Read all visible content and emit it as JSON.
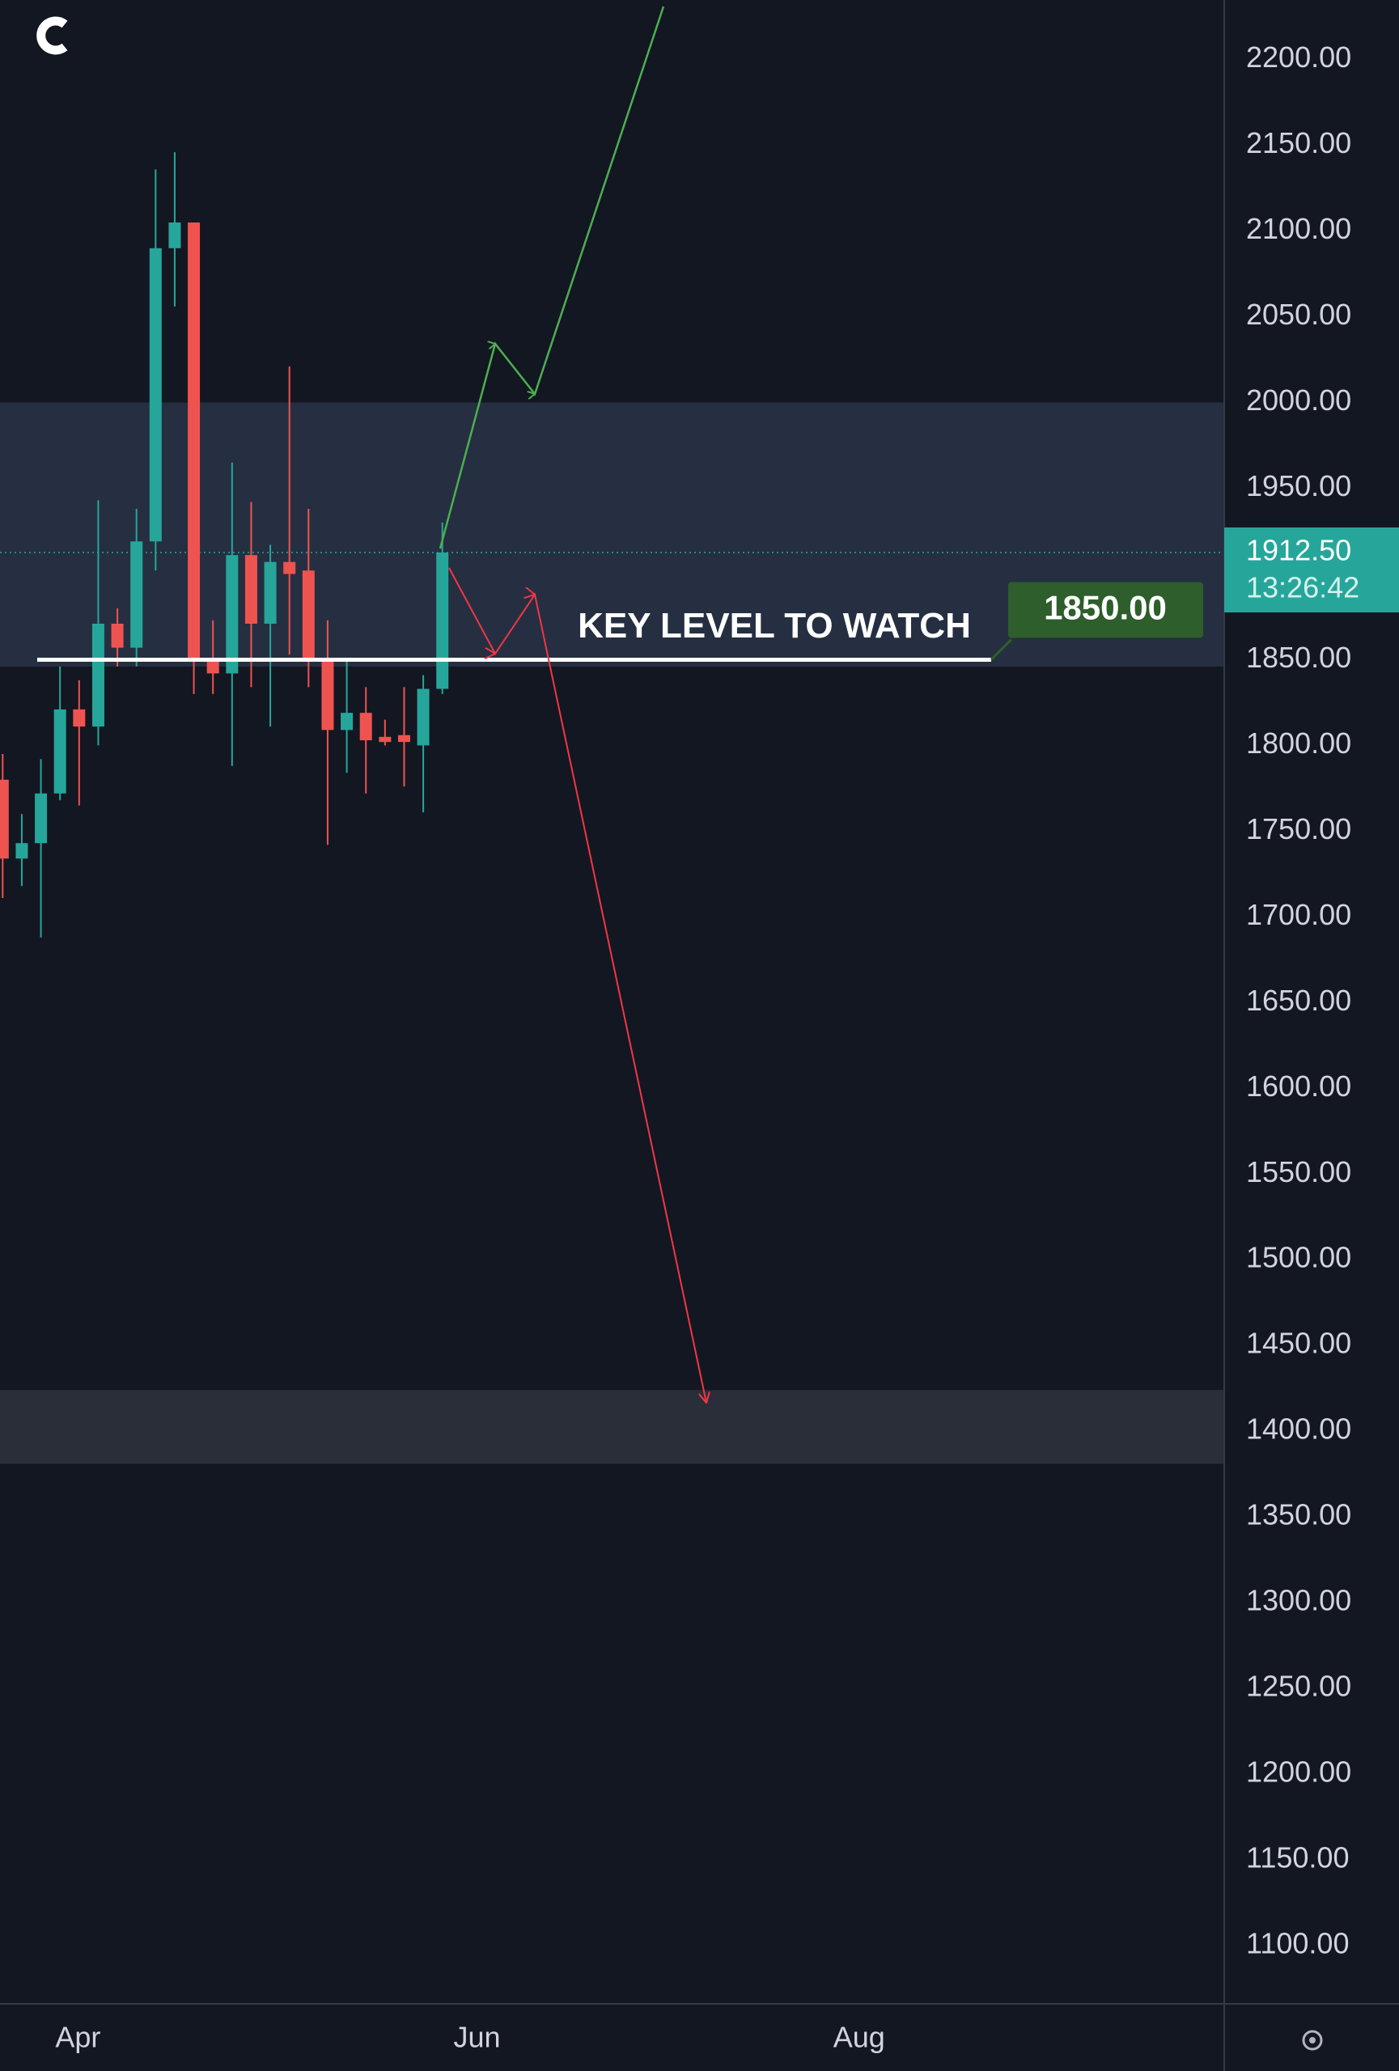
{
  "chart_data": {
    "type": "candlestick",
    "x": [
      0,
      1,
      2,
      3,
      4,
      5,
      6,
      7,
      8,
      9,
      10,
      11,
      12,
      13,
      14,
      15,
      16,
      17,
      18,
      19,
      20,
      21,
      22,
      23
    ],
    "open": [
      1780,
      1734,
      1743,
      1772,
      1821,
      1811,
      1871,
      1857,
      1919,
      2090,
      2105,
      1851,
      1842,
      1911,
      1871,
      1907,
      1902,
      1849,
      1809,
      1819,
      1805,
      1806,
      1800,
      1833
    ],
    "high": [
      1795,
      1760,
      1792,
      1846,
      1838,
      1943,
      1880,
      1938,
      2136,
      2146,
      2105,
      1873,
      1965,
      1942,
      1917,
      2021,
      1938,
      1873,
      1850,
      1834,
      1815,
      1834,
      1841,
      1930
    ],
    "low": [
      1711,
      1718,
      1688,
      1768,
      1765,
      1800,
      1846,
      1846,
      1902,
      2056,
      1830,
      1830,
      1788,
      1834,
      1811,
      1853,
      1834,
      1742,
      1784,
      1772,
      1800,
      1776,
      1761,
      1830
    ],
    "close": [
      1734,
      1743,
      1772,
      1821,
      1811,
      1871,
      1857,
      1919,
      2090,
      2105,
      1851,
      1842,
      1911,
      1871,
      1907,
      1900,
      1849,
      1809,
      1819,
      1803,
      1802,
      1802,
      1833,
      1912.5
    ],
    "up_color": "#26a69a",
    "down_color": "#ef5350",
    "xlim": [
      -0.14,
      63.9
    ],
    "xticks": [
      {
        "value": 3.94,
        "label": "Apr"
      },
      {
        "value": 24.81,
        "label": "Jun"
      },
      {
        "value": 44.8,
        "label": "Aug"
      }
    ],
    "ylim": [
      1066,
      2231
    ],
    "yticks": [
      {
        "value": 1100,
        "label": "1100.00"
      },
      {
        "value": 1150,
        "label": "1150.00"
      },
      {
        "value": 1200,
        "label": "1200.00"
      },
      {
        "value": 1250,
        "label": "1250.00"
      },
      {
        "value": 1300,
        "label": "1300.00"
      },
      {
        "value": 1350,
        "label": "1350.00"
      },
      {
        "value": 1400,
        "label": "1400.00"
      },
      {
        "value": 1450,
        "label": "1450.00"
      },
      {
        "value": 1500,
        "label": "1500.00"
      },
      {
        "value": 1550,
        "label": "1550.00"
      },
      {
        "value": 1600,
        "label": "1600.00"
      },
      {
        "value": 1650,
        "label": "1650.00"
      },
      {
        "value": 1700,
        "label": "1700.00"
      },
      {
        "value": 1750,
        "label": "1750.00"
      },
      {
        "value": 1800,
        "label": "1800.00"
      },
      {
        "value": 1850,
        "label": "1850.00"
      },
      {
        "value": 1900,
        "label": "1900.00"
      },
      {
        "value": 1950,
        "label": "1950.00"
      },
      {
        "value": 2000,
        "label": "2000.00"
      },
      {
        "value": 2050,
        "label": "2050.00"
      },
      {
        "value": 2100,
        "label": "2100.00"
      },
      {
        "value": 2150,
        "label": "2150.00"
      },
      {
        "value": 2200,
        "label": "2200.00"
      }
    ],
    "grid": false,
    "bands": [
      {
        "low": 1846,
        "high": 2000,
        "color": "#252f41"
      },
      {
        "low": 1381,
        "high": 1424,
        "color": "#2a2e39"
      }
    ],
    "key_level": {
      "value": 1850,
      "label": "1850.00",
      "text": "KEY LEVEL TO WATCH"
    },
    "last_price": {
      "value": 1912.5,
      "label": "1912.50",
      "countdown": "13:26:42"
    }
  }
}
